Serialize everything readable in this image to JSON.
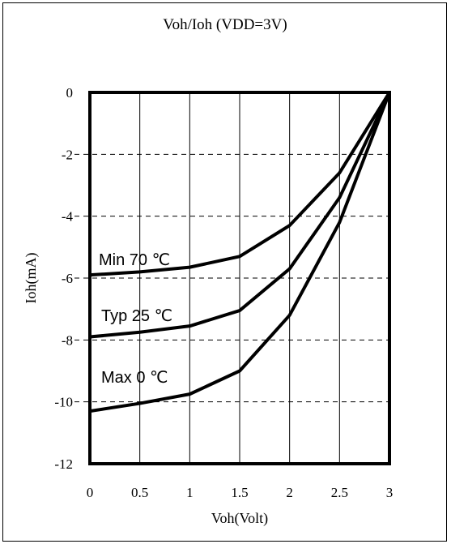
{
  "chart_data": {
    "type": "line",
    "title": "Voh/Ioh (VDD=3V)",
    "xlabel": "Voh(Volt)",
    "ylabel": "Ioh(mA)",
    "xlim": [
      0,
      3
    ],
    "ylim": [
      -12,
      0
    ],
    "x_ticks": [
      "0",
      "0.5",
      "1",
      "1.5",
      "2",
      "2.5",
      "3"
    ],
    "y_ticks": [
      "0",
      "-2",
      "-4",
      "-6",
      "-8",
      "-10",
      "-12"
    ],
    "x": [
      0,
      0.5,
      1,
      1.5,
      2,
      2.5,
      3
    ],
    "series": [
      {
        "name": "Min 70 ℃",
        "values": [
          -5.9,
          -5.8,
          -5.65,
          -5.3,
          -4.3,
          -2.6,
          0
        ]
      },
      {
        "name": "Typ 25 ℃",
        "values": [
          -7.9,
          -7.75,
          -7.55,
          -7.05,
          -5.7,
          -3.4,
          0
        ]
      },
      {
        "name": "Max 0 ℃",
        "values": [
          -10.3,
          -10.05,
          -9.75,
          -9.0,
          -7.2,
          -4.2,
          0
        ]
      }
    ],
    "grid": {
      "vertical": "solid",
      "horizontal": "dashed"
    },
    "legend": "inline labels left of curves",
    "colors": {
      "line": "#000000",
      "grid": "#000000",
      "background": "#ffffff"
    }
  }
}
